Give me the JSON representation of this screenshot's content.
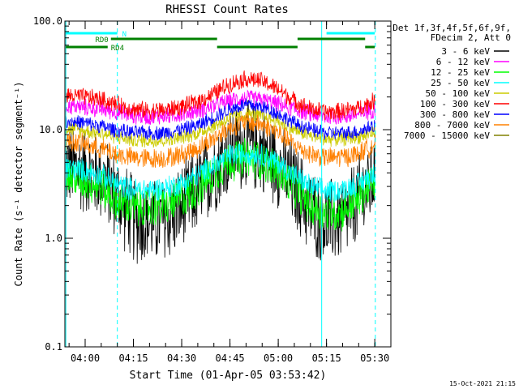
{
  "chart_data": {
    "type": "line",
    "title": "RHESSI Count Rates",
    "xlabel": "Start Time (01-Apr-05 03:53:42)",
    "ylabel": "Count Rate (s⁻¹ detector segment⁻¹)",
    "y_scale": "log",
    "ylim": [
      0.1,
      100
    ],
    "y_tick_labels": [
      "0.1",
      "1.0",
      "10.0",
      "100.0"
    ],
    "x_tick_labels": [
      "04:00",
      "04:15",
      "04:30",
      "04:45",
      "05:00",
      "05:15",
      "05:30"
    ],
    "xlim": [
      "03:53:42",
      "05:35:00"
    ],
    "grid": false,
    "legend_position": "right",
    "legend_header": [
      "Det 1f,3f,4f,5f,6f,9f,",
      "FDecim 2, Att 0"
    ],
    "timestamp": "15-Oct-2021 21:15",
    "x_time_points": [
      "03:55",
      "04:00",
      "04:05",
      "04:10",
      "04:15",
      "04:20",
      "04:25",
      "04:30",
      "04:35",
      "04:40",
      "04:45",
      "04:50",
      "04:55",
      "05:00",
      "05:05",
      "05:10",
      "05:15",
      "05:20",
      "05:25",
      "05:30"
    ],
    "series": [
      {
        "name": "3 - 6 keV",
        "color": "#000000",
        "values": [
          4.6,
          4.2,
          3.6,
          2.4,
          1.5,
          1.4,
          1.5,
          1.9,
          2.8,
          4.3,
          6.3,
          7.2,
          6.5,
          4.8,
          3.0,
          1.8,
          1.4,
          1.5,
          2.2,
          3.8
        ],
        "noise": 0.3
      },
      {
        "name": "6 - 12 keV",
        "color": "#ff00ff",
        "values": [
          16.5,
          16.0,
          15.5,
          14.5,
          13.5,
          13.2,
          13.4,
          14.0,
          15.0,
          16.5,
          18.5,
          19.5,
          18.8,
          17.2,
          15.5,
          14.0,
          13.2,
          13.3,
          13.8,
          15.5
        ],
        "noise": 0.06
      },
      {
        "name": "12 - 25 keV",
        "color": "#00ff00",
        "values": [
          3.7,
          3.4,
          3.0,
          2.2,
          1.9,
          1.9,
          2.0,
          2.3,
          2.9,
          4.0,
          5.2,
          5.5,
          5.2,
          4.1,
          2.9,
          2.0,
          1.7,
          1.8,
          2.3,
          3.3
        ],
        "noise": 0.14
      },
      {
        "name": "25 - 50 keV",
        "color": "#00ffff",
        "values": [
          4.4,
          4.2,
          3.8,
          3.1,
          2.8,
          2.8,
          2.9,
          3.2,
          3.8,
          4.7,
          5.8,
          6.1,
          5.8,
          4.9,
          3.8,
          3.0,
          2.7,
          2.8,
          3.2,
          4.0
        ],
        "noise": 0.08
      },
      {
        "name": "50 - 100 keV",
        "color": "#cccc00",
        "values": [
          10.2,
          9.8,
          9.3,
          8.5,
          8.0,
          7.9,
          8.0,
          8.5,
          9.3,
          10.8,
          12.8,
          13.8,
          13.2,
          11.8,
          10.0,
          8.8,
          8.2,
          8.2,
          8.6,
          9.5
        ],
        "noise": 0.05
      },
      {
        "name": "100 - 300 keV",
        "color": "#ff0000",
        "values": [
          20.5,
          20.0,
          19.0,
          17.0,
          15.5,
          15.0,
          15.2,
          16.2,
          18.0,
          21.5,
          26.5,
          29.5,
          28.0,
          23.5,
          18.5,
          15.5,
          14.5,
          14.8,
          15.8,
          18.5
        ],
        "noise": 0.06
      },
      {
        "name": "300 - 800 keV",
        "color": "#0000ff",
        "values": [
          12.0,
          11.5,
          10.8,
          9.8,
          9.4,
          9.3,
          9.4,
          10.0,
          11.0,
          13.0,
          15.5,
          17.0,
          16.2,
          14.0,
          11.5,
          10.0,
          9.3,
          9.3,
          9.6,
          11.0
        ],
        "noise": 0.05
      },
      {
        "name": "800 - 7000 keV",
        "color": "#ff8000",
        "values": [
          7.8,
          7.3,
          6.7,
          5.9,
          5.5,
          5.4,
          5.5,
          5.9,
          6.7,
          8.3,
          10.5,
          11.8,
          11.2,
          9.3,
          7.2,
          6.0,
          5.5,
          5.6,
          6.0,
          7.4
        ],
        "noise": 0.07
      },
      {
        "name": "7000 - 15000 keV",
        "color": "#808000",
        "values": [],
        "noise": 0
      }
    ],
    "bars": [
      {
        "label": "N",
        "color": "#00ffff",
        "level": "top",
        "segments": [
          [
            "03:54",
            "04:10"
          ],
          [
            "05:15",
            "05:30"
          ]
        ]
      },
      {
        "label": "RD0",
        "color": "#008000",
        "level": "middle",
        "segments": [
          [
            "04:08",
            "04:41"
          ],
          [
            "05:06",
            "05:27"
          ]
        ]
      },
      {
        "label": "RD4",
        "color": "#008000",
        "level": "bottom",
        "segments": [
          [
            "03:54",
            "04:07"
          ],
          [
            "04:41",
            "05:06"
          ],
          [
            "05:27",
            "05:30"
          ]
        ]
      }
    ],
    "vertical_markers": [
      {
        "time": "03:54:00",
        "style": "solid",
        "color": "#00ffff"
      },
      {
        "time": "04:10:00",
        "style": "dashed",
        "color": "#00ffff"
      },
      {
        "time": "05:13:30",
        "style": "solid",
        "color": "#00ffff"
      },
      {
        "time": "05:30:10",
        "style": "dashed",
        "color": "#00ffff"
      }
    ]
  }
}
